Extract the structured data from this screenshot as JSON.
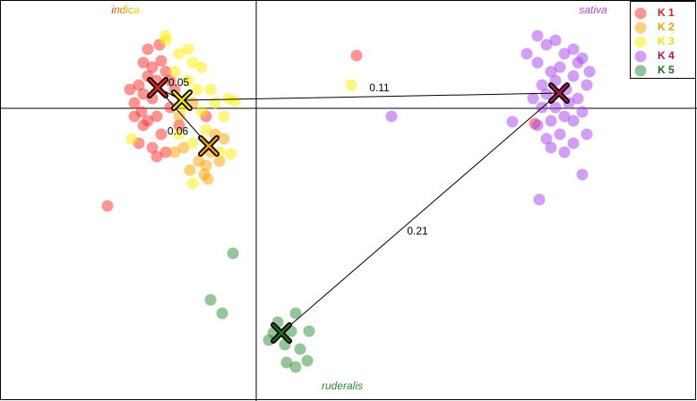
{
  "chart_data": {
    "type": "scatter",
    "xlim": [
      -2.86,
      4.92
    ],
    "ylim": [
      -3.27,
      1.21
    ],
    "zero_lines": true,
    "legend": "upper right",
    "group_labels": [
      "indica",
      "sativa",
      "ruderalis"
    ],
    "series": [
      {
        "name": "K 1",
        "color": "#ff2a2a",
        "label_color": "#e8201a",
        "centroid": [
          -1.1,
          0.23
        ],
        "x": [
          -1.26,
          -1.16,
          -1.06,
          -1.21,
          -1.31,
          -1.11,
          -1.01,
          -1.26,
          -1.36,
          -1.16,
          -1.28,
          -1.21,
          -1.11,
          -1.26,
          -1.06,
          -1.16,
          -1.31,
          -1.01,
          -0.96,
          -0.91,
          -1.36,
          -1.41,
          -1.21,
          -1.08,
          -0.96,
          -0.86,
          -1.66,
          1.12,
          3.11,
          -1.11,
          -0.56
        ],
        "y": [
          0.51,
          0.46,
          0.53,
          0.36,
          0.26,
          0.31,
          0.41,
          0.16,
          0.06,
          0.11,
          -0.04,
          -0.14,
          -0.09,
          -0.19,
          -0.29,
          -0.44,
          -0.39,
          -0.49,
          0.01,
          0.21,
          -0.09,
          0.21,
          0.66,
          0.71,
          0.31,
          -0.19,
          -1.09,
          0.59,
          -0.17,
          -0.54,
          -0.09
        ]
      },
      {
        "name": "K 2",
        "color": "#ffa200",
        "label_color": "#f5a000",
        "centroid": [
          -0.53,
          -0.42
        ],
        "x": [
          -0.58,
          -0.56,
          -0.64,
          -0.46,
          -0.36,
          -0.51,
          -0.74,
          -0.91,
          -0.86,
          -0.71,
          -0.41,
          -0.54,
          -0.81
        ],
        "y": [
          -0.74,
          -0.64,
          -0.59,
          -0.29,
          -0.34,
          -0.49,
          -0.69,
          -0.49,
          -0.09,
          0.06,
          -0.59,
          -0.79,
          -0.44
        ]
      },
      {
        "name": "K 3",
        "color": "#ffee00",
        "label_color": "#f2e200",
        "centroid": [
          -0.83,
          0.09
        ],
        "x": [
          -1.01,
          -0.86,
          -0.71,
          -0.61,
          -0.76,
          -0.66,
          -0.91,
          -0.46,
          -0.31,
          -0.24,
          -0.36,
          -0.56,
          -0.71,
          -0.28,
          -0.41,
          -0.71,
          -1.39,
          1.06,
          -0.81,
          -0.61,
          -1.01,
          -0.76,
          -0.51,
          -0.86
        ],
        "y": [
          0.76,
          0.61,
          0.51,
          0.46,
          0.31,
          0.21,
          0.41,
          0.06,
          0.11,
          0.08,
          -0.09,
          -0.24,
          -0.39,
          -0.51,
          -0.49,
          -0.84,
          -0.34,
          0.26,
          0.01,
          -0.04,
          0.81,
          0.66,
          0.21,
          -0.29
        ]
      },
      {
        "name": "K 4",
        "color": "#a540f0",
        "label_color": "#b0105a",
        "centroid": [
          3.38,
          0.17
        ],
        "x": [
          3.14,
          3.24,
          3.34,
          3.44,
          3.54,
          3.64,
          3.14,
          3.29,
          3.39,
          3.54,
          3.69,
          3.19,
          3.09,
          3.24,
          3.34,
          3.49,
          3.59,
          3.64,
          3.44,
          3.29,
          3.14,
          3.54,
          3.69,
          3.39,
          3.24,
          3.54,
          3.44,
          3.29,
          3.64,
          3.16,
          2.86,
          1.51,
          3.02,
          3.72,
          3.59,
          3.19,
          3.34,
          3.46
        ],
        "y": [
          0.81,
          0.71,
          0.76,
          0.61,
          0.66,
          0.56,
          0.51,
          0.41,
          0.46,
          0.36,
          0.26,
          0.26,
          0.11,
          0.16,
          0.01,
          0.06,
          0.11,
          -0.04,
          -0.09,
          -0.14,
          -0.19,
          -0.14,
          -0.29,
          -0.29,
          -0.34,
          -0.39,
          -0.49,
          -0.44,
          -0.74,
          -1.02,
          -0.15,
          -0.09,
          0.61,
          0.41,
          0.51,
          0.01,
          0.31,
          0.21
        ]
      },
      {
        "name": "K 5",
        "color": "#2e8b3a",
        "label_color": "#1f6e1f",
        "centroid": [
          0.28,
          -2.51
        ],
        "x": [
          -0.26,
          -0.51,
          -0.38,
          0.24,
          0.44,
          0.59,
          0.14,
          0.32,
          0.49,
          0.39,
          0.34,
          0.57,
          0.44,
          0.19
        ],
        "y": [
          -1.62,
          -2.14,
          -2.29,
          -2.39,
          -2.29,
          -2.49,
          -2.59,
          -2.64,
          -2.69,
          -2.49,
          -2.84,
          -2.82,
          -2.89,
          -2.51
        ]
      }
    ],
    "links": [
      {
        "between": [
          "K 1",
          "K 3"
        ],
        "value": 0.05
      },
      {
        "between": [
          "K 3",
          "K 4"
        ],
        "value": 0.11
      },
      {
        "between": [
          "K 1",
          "K 2"
        ],
        "value": 0.06
      },
      {
        "between": [
          "K 4",
          "K 5"
        ],
        "value": 0.21
      }
    ]
  }
}
